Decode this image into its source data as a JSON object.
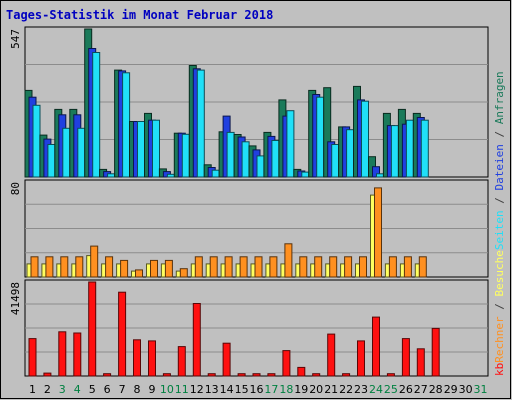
{
  "chart_data": {
    "type": "bar",
    "title": "Tages-Statistik im Monat Februar 2018",
    "days": [
      "1",
      "2",
      "3",
      "4",
      "5",
      "6",
      "7",
      "8",
      "9",
      "10",
      "11",
      "12",
      "13",
      "14",
      "15",
      "16",
      "17",
      "18",
      "19",
      "20",
      "21",
      "22",
      "23",
      "24",
      "25",
      "26",
      "27",
      "28",
      "29",
      "30",
      "31"
    ],
    "weekend_days": [
      "3",
      "4",
      "10",
      "11",
      "17",
      "18",
      "24",
      "25",
      "31"
    ],
    "panels": [
      {
        "name": "top",
        "max_label": "547",
        "ymax": 547,
        "series": [
          {
            "name": "Anfragen",
            "color": "#1a7a5a",
            "values": [
              320,
              155,
              250,
              250,
              547,
              28,
              395,
              205,
              235,
              30,
              162,
              412,
              45,
              167,
              157,
              115,
              165,
              285,
              28,
              320,
              330,
              185,
              335,
              75,
              235,
              250,
              235,
              null,
              null,
              null,
              null
            ]
          },
          {
            "name": "Dateien",
            "color": "#2040e0",
            "values": [
              295,
              140,
              230,
              230,
              475,
              20,
              392,
              205,
              210,
              20,
              162,
              400,
              35,
              225,
              148,
              100,
              150,
              225,
              22,
              305,
              130,
              185,
              285,
              38,
              190,
              195,
              220,
              null,
              null,
              null,
              null
            ]
          },
          {
            "name": "Seiten",
            "color": "#20e0f8",
            "values": [
              265,
              120,
              180,
              180,
              460,
              12,
              385,
              205,
              210,
              10,
              158,
              395,
              25,
              165,
              130,
              78,
              135,
              245,
              18,
              295,
              120,
              175,
              280,
              12,
              190,
              210,
              210,
              null,
              null,
              null,
              null
            ]
          }
        ]
      },
      {
        "name": "middle",
        "max_label": "80",
        "ymax": 80,
        "series": [
          {
            "name": "Besuche",
            "color": "#ffff60",
            "values": [
              11,
              11,
              11,
              11,
              18,
              11,
              11,
              5,
              11,
              11,
              5,
              11,
              11,
              11,
              11,
              11,
              11,
              11,
              11,
              11,
              11,
              11,
              11,
              69,
              11,
              11,
              11,
              null,
              null,
              null,
              null
            ]
          },
          {
            "name": "Rechner",
            "color": "#ff9020",
            "values": [
              17,
              17,
              17,
              17,
              26,
              17,
              14,
              6,
              14,
              14,
              7,
              17,
              17,
              17,
              17,
              17,
              17,
              28,
              17,
              17,
              17,
              17,
              17,
              75,
              17,
              17,
              17,
              null,
              null,
              null,
              null
            ]
          }
        ]
      },
      {
        "name": "bottom",
        "max_label": "41498",
        "ymax": 41498,
        "series": [
          {
            "name": "kb",
            "color": "#ff1010",
            "values": [
              16500,
              1300,
              19500,
              19000,
              41498,
              1000,
              37000,
              16000,
              15500,
              1000,
              13000,
              32000,
              1000,
              14500,
              1000,
              1000,
              1000,
              11200,
              3800,
              1000,
              18500,
              1000,
              15500,
              26000,
              1000,
              16500,
              12000,
              21000,
              null,
              null,
              null
            ]
          }
        ]
      }
    ],
    "side_label_parts": [
      {
        "text": "kb",
        "color": "#ff1010"
      },
      {
        "text": "Rechner",
        "color": "#ff9020"
      },
      {
        "text": " / ",
        "color": "#404040"
      },
      {
        "text": "Besuche",
        "color": "#ffff60"
      },
      {
        "text": "Seiten",
        "color": "#20e0f8"
      },
      {
        "text": " / ",
        "color": "#404040"
      },
      {
        "text": "Dateien",
        "color": "#2040e0"
      },
      {
        "text": " / ",
        "color": "#404040"
      },
      {
        "text": "Anfragen",
        "color": "#1a7a5a"
      }
    ],
    "colors": {
      "background": "#c0c0c0",
      "border": "#000000",
      "title": "#0000c0",
      "weekday_label": "#000000",
      "weekend_label": "#008040",
      "grid": "#888888"
    }
  }
}
